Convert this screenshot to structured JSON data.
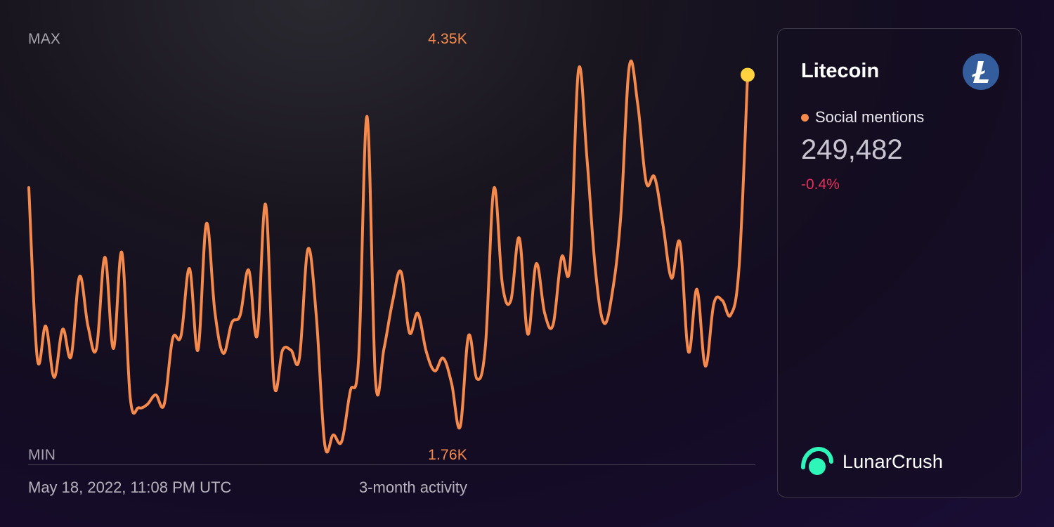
{
  "header": {
    "max_label": "MAX",
    "min_label": "MIN",
    "max_value": "4.35K",
    "min_value": "1.76K"
  },
  "footer": {
    "timestamp": "May 18, 2022, 11:08 PM UTC",
    "period": "3-month activity"
  },
  "card": {
    "coin_name": "Litecoin",
    "coin_logo_icon": "litecoin-icon",
    "metric_label": "Social mentions",
    "metric_value": "249,482",
    "metric_change": "-0.4%",
    "brand_name": "LunarCrush",
    "brand_logo_icon": "lunarcrush-logo-icon"
  },
  "colors": {
    "line": "#f58a4c",
    "last_point": "#ffd23f",
    "change_negative": "#e0315a",
    "coin_logo": "#345d9d",
    "brand_accent": "#2ef5b8"
  },
  "chart_data": {
    "type": "line",
    "series": [
      {
        "name": "Social mentions",
        "values": [
          3485,
          2420,
          2620,
          2300,
          2600,
          2430,
          2930,
          2620,
          2480,
          3050,
          2480,
          3080,
          2170,
          2110,
          2130,
          2190,
          2130,
          2540,
          2560,
          2980,
          2470,
          3260,
          2710,
          2450,
          2640,
          2690,
          2970,
          2560,
          3380,
          2260,
          2470,
          2470,
          2420,
          3100,
          2680,
          1880,
          1940,
          1900,
          2210,
          2420,
          3930,
          2280,
          2480,
          2770,
          2960,
          2580,
          2700,
          2460,
          2340,
          2420,
          2260,
          1990,
          2560,
          2290,
          2500,
          3480,
          2880,
          2780,
          3170,
          2570,
          3010,
          2700,
          2630,
          3050,
          3000,
          4220,
          3670,
          2970,
          2640,
          2830,
          3310,
          4240,
          4010,
          3520,
          3550,
          3250,
          2920,
          3140,
          2460,
          2850,
          2370,
          2760,
          2780,
          2690,
          3000,
          4190
        ]
      }
    ],
    "x_range": "3-month activity",
    "ylim": [
      1760,
      4350
    ],
    "y_labels": {
      "max": "4.35K",
      "min": "1.76K"
    },
    "grid": false,
    "last_point_highlighted": true
  }
}
